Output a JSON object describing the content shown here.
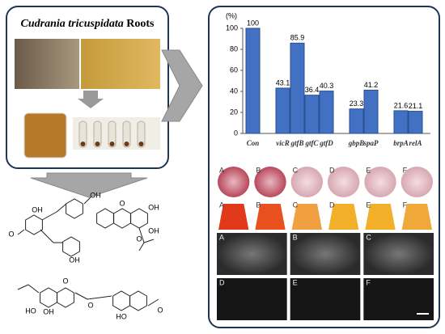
{
  "header": {
    "title_italic": "Cudrania tricuspidata",
    "title_rest": "Roots"
  },
  "chart_data": {
    "type": "bar",
    "y_unit": "(%)",
    "categories": [
      "Con",
      "vicR",
      "gtfB",
      "gtfC",
      "gtfD",
      "gbpB",
      "spaP",
      "brpA",
      "relA"
    ],
    "values": [
      100,
      43.1,
      85.9,
      36.4,
      40.3,
      23.3,
      41.2,
      21.6,
      21.1
    ],
    "color": "#4270c2",
    "ylim": [
      0,
      100
    ],
    "yticks": [
      0,
      20,
      40,
      60,
      80,
      100
    ]
  },
  "photo_rows": [
    [
      "A",
      "B",
      "C",
      "D",
      "E",
      "F"
    ],
    [
      "A",
      "B",
      "C",
      "D",
      "E",
      "F"
    ],
    [
      "A",
      "B",
      "C"
    ],
    [
      "D",
      "E",
      "F"
    ]
  ],
  "chem_labels": [
    "OH",
    "OH",
    "O",
    "OH",
    "O",
    "OH",
    "OH",
    "O",
    "OH",
    "HO",
    "O",
    "O",
    "O",
    "HO"
  ]
}
